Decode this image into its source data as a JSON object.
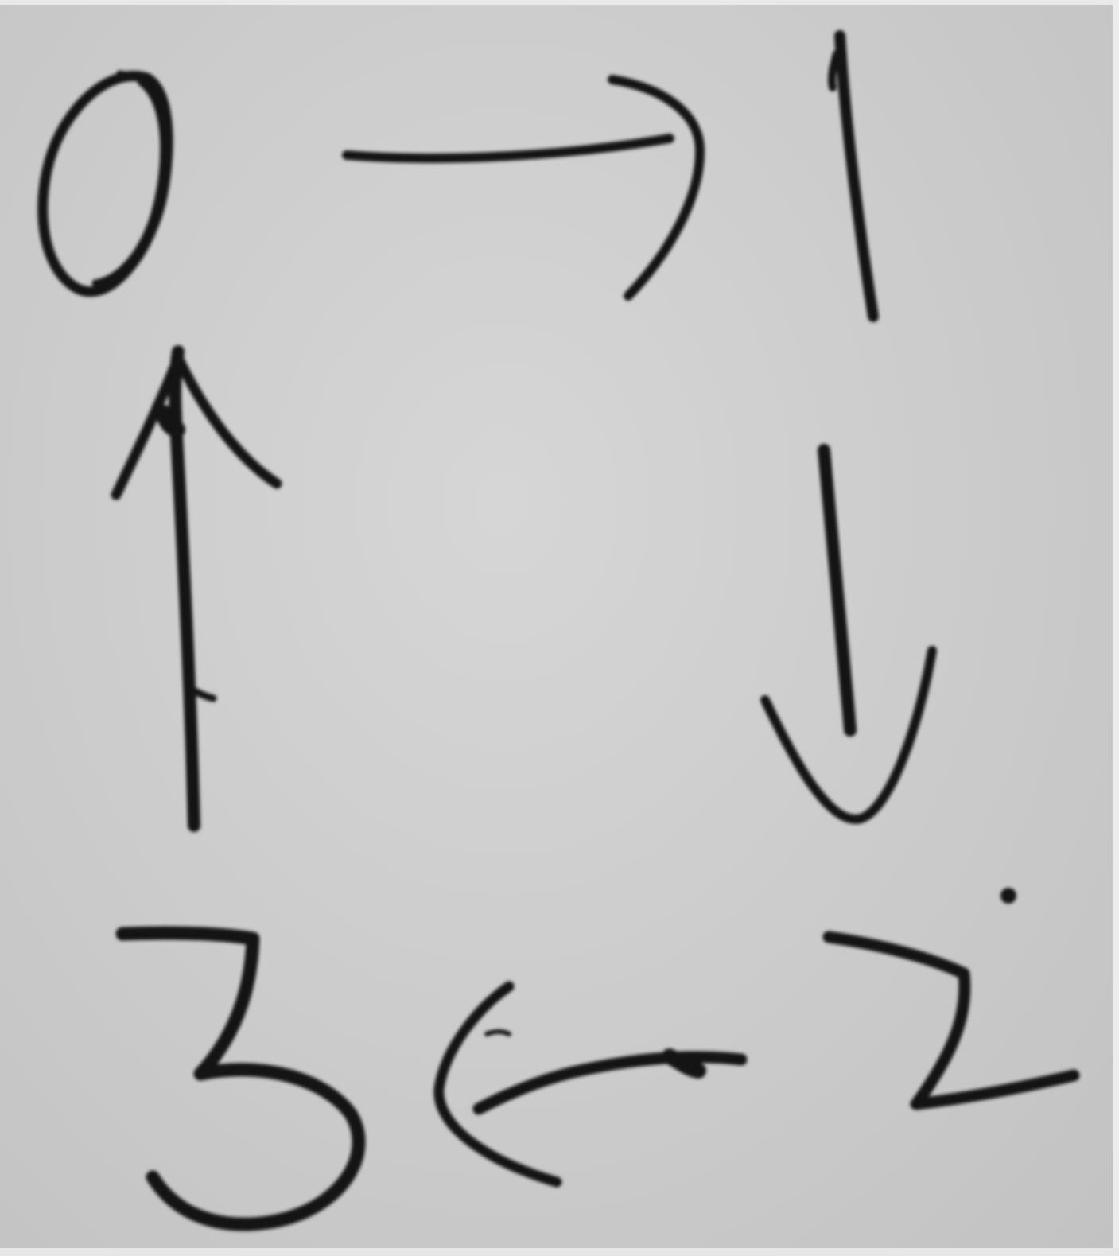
{
  "diagram": {
    "type": "handwritten-cycle",
    "ink_color": "#141414",
    "paper_color": "#cdcdcd",
    "nodes": [
      {
        "id": "n0",
        "label": "0"
      },
      {
        "id": "n1",
        "label": "1"
      },
      {
        "id": "n2",
        "label": "2"
      },
      {
        "id": "n3",
        "label": "3"
      }
    ],
    "edges": [
      {
        "from": "0",
        "to": "1",
        "direction": "right"
      },
      {
        "from": "1",
        "to": "2",
        "direction": "down"
      },
      {
        "from": "2",
        "to": "3",
        "direction": "left"
      },
      {
        "from": "3",
        "to": "0",
        "direction": "up"
      }
    ]
  }
}
